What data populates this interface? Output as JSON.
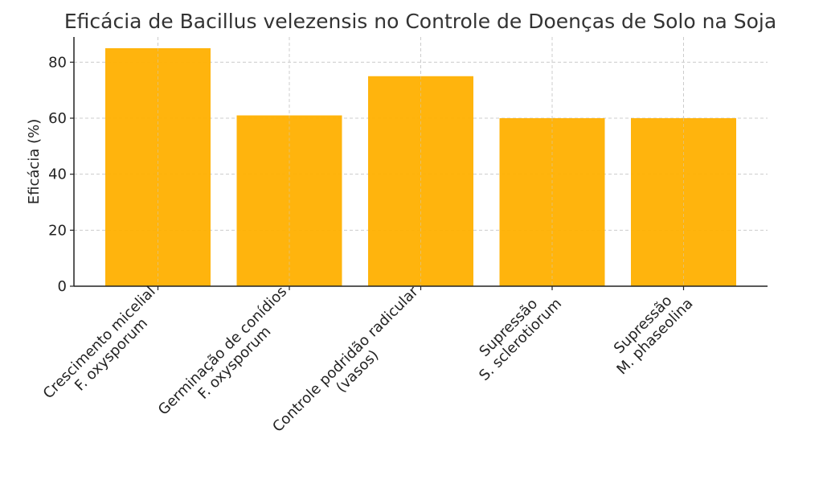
{
  "chart_data": {
    "type": "bar",
    "title": "Eficácia de Bacillus velezensis no Controle de Doenças de Solo na Soja",
    "xlabel": "",
    "ylabel": "Eficácia (%)",
    "ylim": [
      0,
      89
    ],
    "yticks": [
      "0",
      "20",
      "40",
      "60",
      "80"
    ],
    "grid": true,
    "bar_color": "#FFB000",
    "categories": [
      [
        "Crescimento micelial",
        "F. oxysporum"
      ],
      [
        "Germinação de conídios",
        "F. oxysporum"
      ],
      [
        "Controle podridão radicular",
        "(vasos)"
      ],
      [
        "Supressão",
        "S. sclerotiorum"
      ],
      [
        "Supressão",
        "M. phaseolina"
      ]
    ],
    "values": [
      85,
      61,
      75,
      60,
      60
    ]
  }
}
